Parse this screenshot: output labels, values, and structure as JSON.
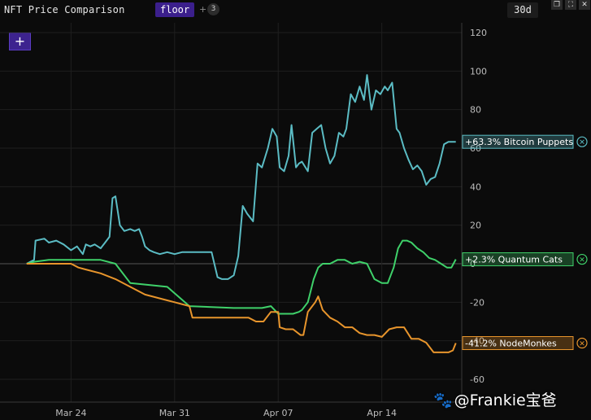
{
  "header": {
    "title": "NFT Price Comparison",
    "chip": "floor",
    "plus": "+",
    "count": "3",
    "range": "30d",
    "window_icons": [
      "restore-icon",
      "expand-icon",
      "close-icon"
    ]
  },
  "add_button": "+",
  "watermark": "@Frankie宝爸",
  "colors": {
    "background": "#0b0b0b",
    "grid": "#262626",
    "bitcoin_puppets": "#5bbcc4",
    "quantum_cats": "#3fd16a",
    "nodemonkes": "#e8952c"
  },
  "chart_data": {
    "type": "line",
    "y_ticks": [
      "120",
      "100",
      "80",
      "60",
      "40",
      "20",
      "0",
      "-20",
      "-40",
      "-60"
    ],
    "ylim": [
      -60,
      120
    ],
    "x_ticks": [
      {
        "label": "Mar 24",
        "x": 3
      },
      {
        "label": "Mar 31",
        "x": 10
      },
      {
        "label": "Apr 07",
        "x": 17
      },
      {
        "label": "Apr 14",
        "x": 24
      }
    ],
    "xlim": [
      -1.8,
      29.4
    ],
    "grid": true,
    "series": [
      {
        "key": "bitcoin_puppets",
        "label": "+63.3% Bitcoin Puppets",
        "color": "#5bbcc4",
        "x": [
          0,
          0.5,
          0.6,
          1.2,
          1.5,
          2.0,
          2.5,
          3.0,
          3.4,
          3.8,
          4.0,
          4.3,
          4.6,
          5.0,
          5.3,
          5.6,
          5.8,
          6.0,
          6.3,
          6.6,
          7.0,
          7.3,
          7.6,
          7.8,
          8.0,
          8.3,
          8.6,
          9.0,
          9.5,
          10.0,
          10.5,
          11.0,
          11.5,
          12.0,
          12.5,
          12.9,
          13.2,
          13.6,
          14.0,
          14.3,
          14.6,
          14.9,
          15.3,
          15.6,
          15.9,
          16.3,
          16.6,
          16.9,
          17.1,
          17.4,
          17.7,
          17.9,
          18.2,
          18.4,
          18.6,
          19.0,
          19.3,
          19.6,
          19.9,
          20.2,
          20.5,
          20.8,
          21.1,
          21.4,
          21.6,
          21.9,
          22.2,
          22.5,
          22.8,
          23.0,
          23.3,
          23.6,
          23.9,
          24.2,
          24.4,
          24.7,
          25.0,
          25.2,
          25.5,
          25.8,
          26.1,
          26.4,
          26.7,
          27.0,
          27.3,
          27.6,
          27.9,
          28.2,
          28.5,
          28.8,
          29.0
        ],
        "y": [
          0,
          2,
          12,
          13,
          11,
          12,
          10,
          7,
          9,
          5,
          10,
          9,
          10,
          8,
          11,
          14,
          34,
          35,
          20,
          17,
          18,
          17,
          18,
          14,
          9,
          7,
          6,
          5,
          6,
          5,
          6,
          6,
          6,
          6,
          6,
          -7,
          -8,
          -8,
          -6,
          4,
          30,
          26,
          22,
          52,
          50,
          60,
          70,
          66,
          50,
          48,
          56,
          72,
          50,
          52,
          53,
          48,
          68,
          70,
          72,
          60,
          52,
          56,
          68,
          66,
          70,
          88,
          84,
          92,
          85,
          98,
          80,
          90,
          88,
          92,
          90,
          94,
          70,
          68,
          60,
          54,
          49,
          51,
          48,
          41,
          44,
          45,
          52,
          62,
          63.3,
          63.3,
          63.3
        ]
      },
      {
        "key": "quantum_cats",
        "label": "+2.3% Quantum Cats",
        "color": "#3fd16a",
        "x": [
          0,
          0.5,
          1.5,
          3.0,
          5.0,
          6.0,
          7.0,
          9.5,
          11.0,
          14.0,
          15.9,
          16.5,
          17.0,
          17.6,
          18.0,
          18.4,
          18.6,
          19.0,
          19.4,
          19.7,
          20.0,
          20.5,
          21.0,
          21.5,
          22.0,
          22.5,
          23.0,
          23.5,
          24.0,
          24.4,
          24.8,
          25.1,
          25.4,
          25.7,
          26.0,
          26.4,
          26.8,
          27.2,
          27.6,
          28.0,
          28.4,
          28.7,
          29.0
        ],
        "y": [
          0,
          1,
          2,
          2,
          2,
          0,
          -10,
          -12,
          -22,
          -23,
          -23,
          -22,
          -26,
          -26,
          -26,
          -25,
          -24,
          -20,
          -8,
          -2,
          0,
          0,
          2,
          2,
          0,
          1,
          0,
          -8,
          -10,
          -10,
          -2,
          8,
          12,
          12,
          11,
          8,
          6,
          3,
          2,
          0,
          -2,
          -2,
          2.3
        ]
      },
      {
        "key": "nodemonkes",
        "label": "-41.2% NodeMonkes",
        "color": "#e8952c",
        "x": [
          0,
          1.5,
          3.0,
          3.5,
          4.0,
          5.0,
          6.0,
          7.0,
          8.0,
          9.0,
          9.5,
          10.0,
          11.0,
          11.2,
          12.0,
          13.0,
          14.0,
          14.5,
          15.0,
          15.5,
          16.0,
          16.5,
          17.0,
          17.1,
          17.5,
          18.0,
          18.5,
          18.7,
          19.0,
          19.5,
          19.7,
          20.0,
          20.5,
          21.0,
          21.5,
          22.0,
          22.5,
          23.0,
          23.5,
          24.0,
          24.5,
          25.0,
          25.5,
          26.0,
          26.5,
          27.0,
          27.5,
          28.0,
          28.5,
          28.8,
          29.0
        ],
        "y": [
          0,
          0,
          0,
          -2,
          -3,
          -5,
          -8,
          -12,
          -16,
          -18,
          -19,
          -20,
          -22,
          -28,
          -28,
          -28,
          -28,
          -28,
          -28,
          -30,
          -30,
          -25,
          -25,
          -33,
          -34,
          -34,
          -37,
          -37,
          -25,
          -20,
          -17,
          -24,
          -28,
          -30,
          -33,
          -33,
          -36,
          -37,
          -37,
          -38,
          -34,
          -33,
          -33,
          -39,
          -39,
          -41,
          -46,
          -46,
          -46,
          -45,
          -41.2
        ]
      }
    ]
  }
}
